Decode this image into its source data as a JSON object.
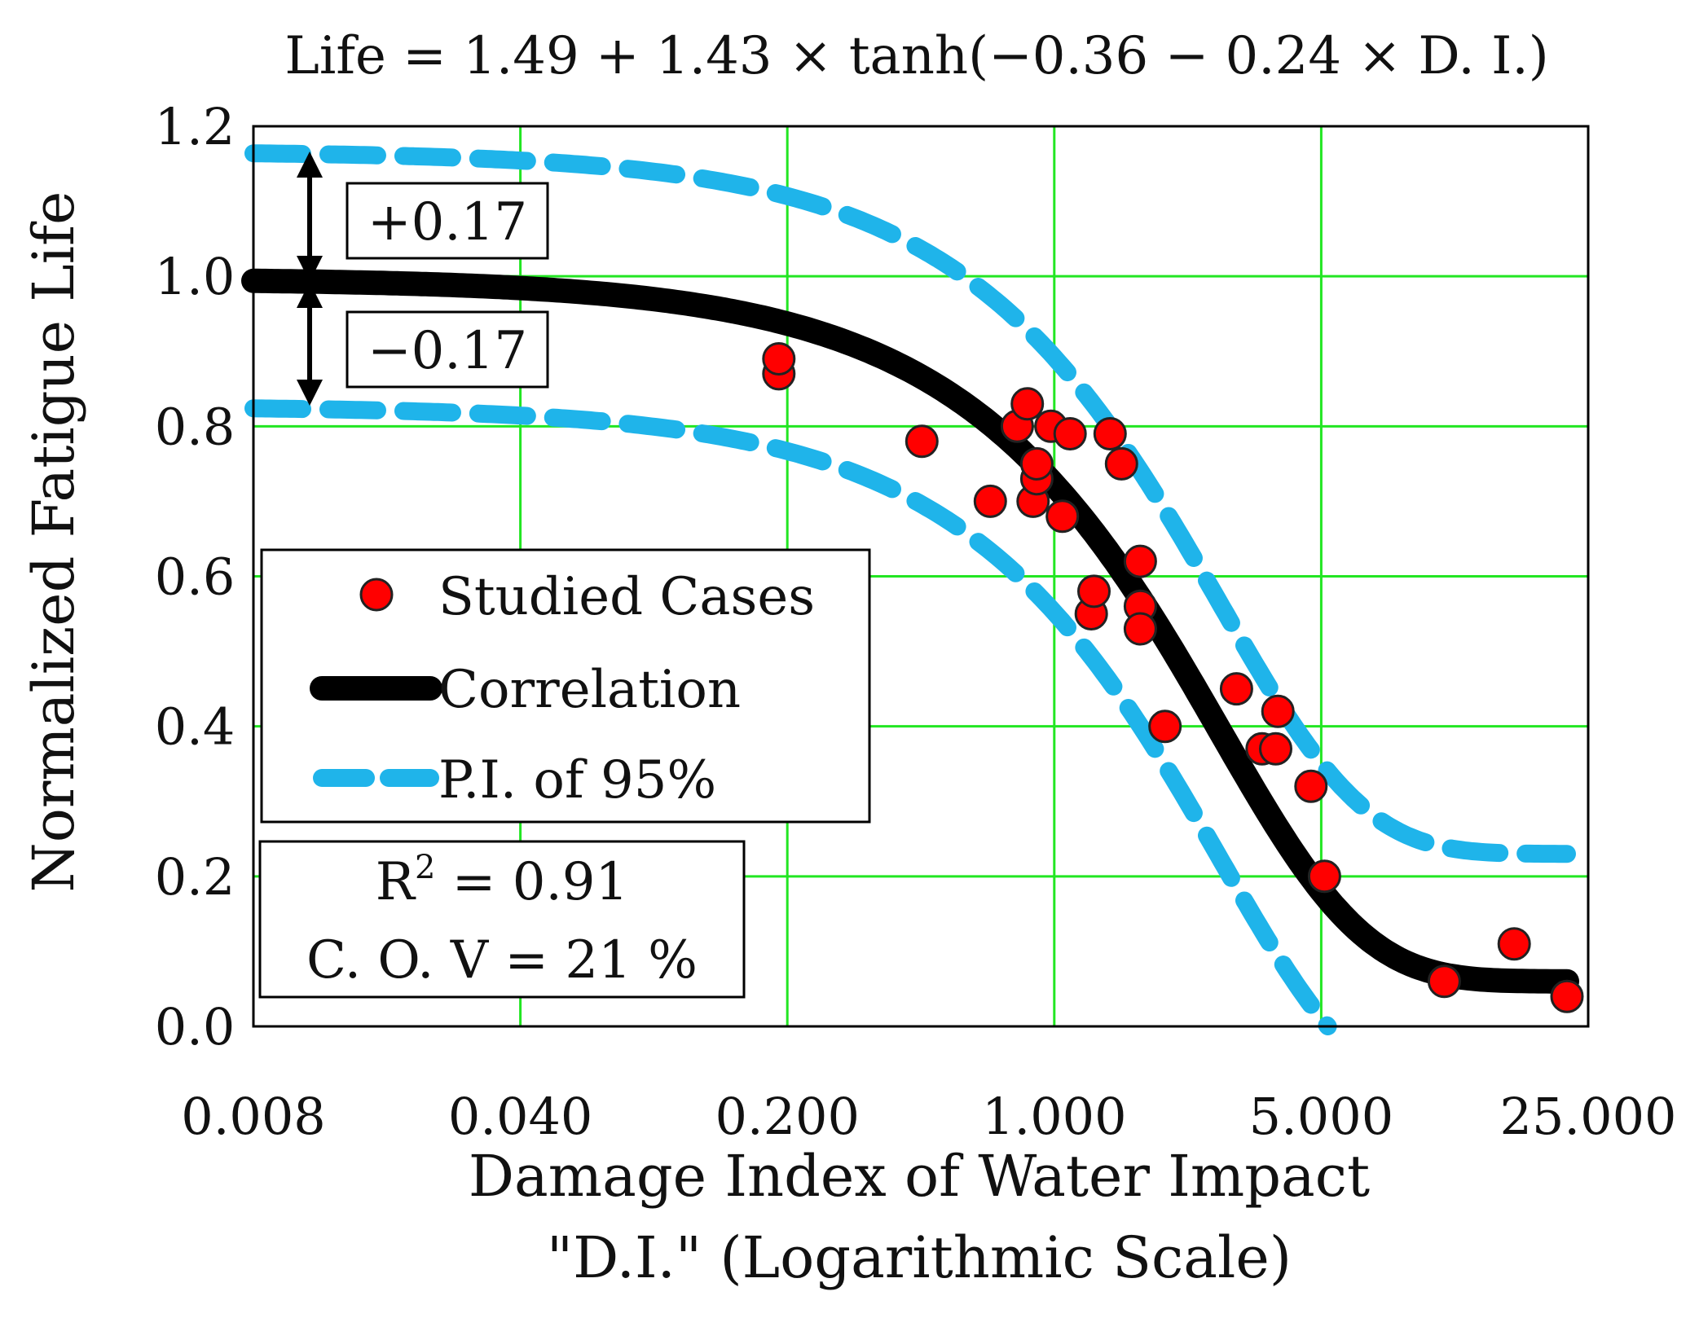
{
  "colors": {
    "grid": "#22e622",
    "point_fill": "#ff0000",
    "point_stroke": "#222222",
    "correlation": "#000000",
    "prediction_interval": "#1fb4ea"
  },
  "chart_data": {
    "type": "scatter",
    "title": "Life = 1.49 + 1.43 × tanh(−0.36 − 0.24 × D. I.)",
    "xlabel_line1": "Damage Index of Water Impact",
    "xlabel_line2": "\"D.I.\" (Logarithmic Scale)",
    "ylabel": "Normalized Fatigue Life",
    "x_scale": "log",
    "xlim": [
      0.008,
      25
    ],
    "ylim": [
      0,
      1.2
    ],
    "x_ticks": [
      0.008,
      0.04,
      0.2,
      1,
      5,
      25
    ],
    "x_tick_labels": [
      "0.008",
      "0.040",
      "0.200",
      "1.000",
      "5.000",
      "25.000"
    ],
    "y_ticks": [
      0,
      0.2,
      0.4,
      0.6,
      0.8,
      1.0,
      1.2
    ],
    "y_tick_labels": [
      "0.0",
      "0.2",
      "0.4",
      "0.6",
      "0.8",
      "1.0",
      "1.2"
    ],
    "grid": true,
    "series": [
      {
        "name": "Studied Cases",
        "kind": "scatter",
        "points": [
          [
            0.19,
            0.87
          ],
          [
            0.19,
            0.89
          ],
          [
            0.45,
            0.78
          ],
          [
            0.68,
            0.7
          ],
          [
            0.8,
            0.8
          ],
          [
            0.85,
            0.83
          ],
          [
            0.88,
            0.7
          ],
          [
            0.9,
            0.73
          ],
          [
            0.9,
            0.75
          ],
          [
            0.98,
            0.8
          ],
          [
            1.05,
            0.68
          ],
          [
            1.1,
            0.79
          ],
          [
            1.25,
            0.55
          ],
          [
            1.27,
            0.58
          ],
          [
            1.4,
            0.79
          ],
          [
            1.5,
            0.75
          ],
          [
            1.68,
            0.62
          ],
          [
            1.68,
            0.56
          ],
          [
            1.68,
            0.53
          ],
          [
            1.95,
            0.4
          ],
          [
            3.0,
            0.45
          ],
          [
            3.5,
            0.37
          ],
          [
            3.8,
            0.37
          ],
          [
            3.85,
            0.42
          ],
          [
            4.7,
            0.32
          ],
          [
            5.1,
            0.2
          ],
          [
            10.5,
            0.06
          ],
          [
            16.0,
            0.11
          ],
          [
            22.0,
            0.04
          ]
        ]
      },
      {
        "name": "Correlation",
        "kind": "line",
        "equation": {
          "a": 1.49,
          "b": 1.43,
          "c": -0.36,
          "d": -0.24
        },
        "x_range": [
          0.008,
          22
        ]
      },
      {
        "name": "P.I. of 95%",
        "kind": "dashed-band",
        "offset": 0.17,
        "x_range": [
          0.008,
          22
        ]
      }
    ],
    "legend": {
      "placement": "middle-left",
      "items": [
        "Studied Cases",
        "Correlation",
        "P.I. of 95%"
      ]
    },
    "stats": {
      "r2_label": "R",
      "r2_sup": "2",
      "r2_value": " = 0.91",
      "cov": "C. O. V = 21 %"
    },
    "annotations": {
      "plus": "+0.17",
      "minus": "−0.17"
    }
  }
}
